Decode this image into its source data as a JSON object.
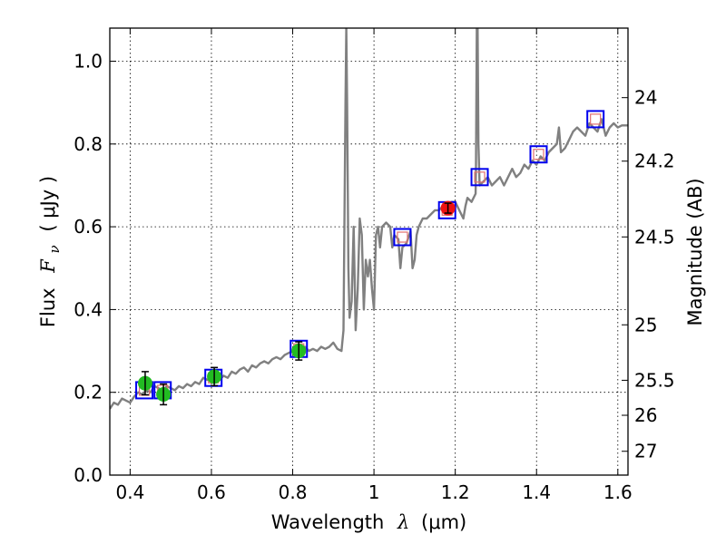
{
  "chart_data": {
    "type": "scatter",
    "xlabel_prefix": "Wavelength",
    "xlabel_symbol": "λ",
    "xlabel_unit": "(μm)",
    "ylabel_prefix": "Flux",
    "ylabel_symbol": "F",
    "ylabel_subscript": "ν",
    "ylabel_unit": "( μJy )",
    "y2label": "Magnitude (AB)",
    "xlim": [
      0.35,
      1.625
    ],
    "ylim": [
      0.0,
      1.08
    ],
    "grid": true,
    "x_ticks": [
      0.4,
      0.6,
      0.8,
      1.0,
      1.2,
      1.4,
      1.6
    ],
    "x_tick_labels": [
      "0.4",
      "0.6",
      "0.8",
      "1",
      "1.2",
      "1.4",
      "1.6"
    ],
    "y_ticks": [
      0.0,
      0.2,
      0.4,
      0.6,
      0.8,
      1.0
    ],
    "y_tick_labels": [
      "0.0",
      "0.2",
      "0.4",
      "0.6",
      "0.8",
      "1.0"
    ],
    "y2_ticks": [
      24,
      24.2,
      24.5,
      25,
      25.5,
      26,
      27
    ],
    "y2_tick_labels": [
      "24",
      "24.2",
      "24.5",
      "25",
      "25.5",
      "26",
      "27"
    ],
    "colors": {
      "spectrum": "#808080",
      "model_box": "#0000ee",
      "model_inner": "#e07070",
      "detection": "#22bb22",
      "detection_ir": "#ee1111",
      "errorbar": "#000000"
    },
    "series": [
      {
        "kind": "line",
        "points": [
          [
            0.35,
            0.16
          ],
          [
            0.36,
            0.175
          ],
          [
            0.37,
            0.17
          ],
          [
            0.38,
            0.185
          ],
          [
            0.39,
            0.18
          ],
          [
            0.4,
            0.175
          ],
          [
            0.41,
            0.19
          ],
          [
            0.42,
            0.2
          ],
          [
            0.43,
            0.195
          ],
          [
            0.44,
            0.205
          ],
          [
            0.45,
            0.2
          ],
          [
            0.46,
            0.215
          ],
          [
            0.47,
            0.21
          ],
          [
            0.48,
            0.2
          ],
          [
            0.49,
            0.215
          ],
          [
            0.5,
            0.21
          ],
          [
            0.51,
            0.205
          ],
          [
            0.52,
            0.215
          ],
          [
            0.53,
            0.21
          ],
          [
            0.54,
            0.22
          ],
          [
            0.55,
            0.215
          ],
          [
            0.56,
            0.225
          ],
          [
            0.57,
            0.22
          ],
          [
            0.58,
            0.235
          ],
          [
            0.59,
            0.23
          ],
          [
            0.6,
            0.24
          ],
          [
            0.61,
            0.235
          ],
          [
            0.62,
            0.23
          ],
          [
            0.63,
            0.24
          ],
          [
            0.64,
            0.235
          ],
          [
            0.65,
            0.25
          ],
          [
            0.66,
            0.245
          ],
          [
            0.67,
            0.255
          ],
          [
            0.68,
            0.26
          ],
          [
            0.69,
            0.25
          ],
          [
            0.7,
            0.265
          ],
          [
            0.71,
            0.26
          ],
          [
            0.72,
            0.27
          ],
          [
            0.73,
            0.275
          ],
          [
            0.74,
            0.27
          ],
          [
            0.75,
            0.28
          ],
          [
            0.76,
            0.285
          ],
          [
            0.77,
            0.28
          ],
          [
            0.78,
            0.29
          ],
          [
            0.79,
            0.295
          ],
          [
            0.8,
            0.3
          ],
          [
            0.81,
            0.305
          ],
          [
            0.82,
            0.3
          ],
          [
            0.83,
            0.31
          ],
          [
            0.84,
            0.3
          ],
          [
            0.85,
            0.305
          ],
          [
            0.86,
            0.3
          ],
          [
            0.87,
            0.31
          ],
          [
            0.88,
            0.305
          ],
          [
            0.89,
            0.31
          ],
          [
            0.9,
            0.32
          ],
          [
            0.91,
            0.305
          ],
          [
            0.92,
            0.3
          ],
          [
            0.925,
            0.35
          ],
          [
            0.93,
            0.9
          ],
          [
            0.932,
            1.08
          ],
          [
            0.934,
            0.9
          ],
          [
            0.937,
            0.5
          ],
          [
            0.94,
            0.38
          ],
          [
            0.945,
            0.42
          ],
          [
            0.95,
            0.6
          ],
          [
            0.955,
            0.35
          ],
          [
            0.96,
            0.45
          ],
          [
            0.965,
            0.62
          ],
          [
            0.97,
            0.58
          ],
          [
            0.975,
            0.4
          ],
          [
            0.98,
            0.52
          ],
          [
            0.985,
            0.48
          ],
          [
            0.99,
            0.52
          ],
          [
            0.995,
            0.45
          ],
          [
            1.0,
            0.4
          ],
          [
            1.005,
            0.58
          ],
          [
            1.01,
            0.6
          ],
          [
            1.015,
            0.55
          ],
          [
            1.02,
            0.6
          ],
          [
            1.03,
            0.61
          ],
          [
            1.04,
            0.6
          ],
          [
            1.045,
            0.55
          ],
          [
            1.05,
            0.58
          ],
          [
            1.06,
            0.57
          ],
          [
            1.065,
            0.5
          ],
          [
            1.07,
            0.55
          ],
          [
            1.08,
            0.56
          ],
          [
            1.09,
            0.59
          ],
          [
            1.095,
            0.5
          ],
          [
            1.1,
            0.52
          ],
          [
            1.105,
            0.58
          ],
          [
            1.11,
            0.6
          ],
          [
            1.12,
            0.62
          ],
          [
            1.13,
            0.62
          ],
          [
            1.14,
            0.63
          ],
          [
            1.15,
            0.64
          ],
          [
            1.16,
            0.64
          ],
          [
            1.17,
            0.65
          ],
          [
            1.18,
            0.65
          ],
          [
            1.19,
            0.66
          ],
          [
            1.2,
            0.66
          ],
          [
            1.21,
            0.64
          ],
          [
            1.22,
            0.62
          ],
          [
            1.225,
            0.65
          ],
          [
            1.23,
            0.67
          ],
          [
            1.24,
            0.66
          ],
          [
            1.25,
            0.68
          ],
          [
            1.251,
            0.75
          ],
          [
            1.253,
            1.08
          ],
          [
            1.255,
            1.08
          ],
          [
            1.257,
            0.8
          ],
          [
            1.26,
            0.7
          ],
          [
            1.27,
            0.71
          ],
          [
            1.28,
            0.72
          ],
          [
            1.29,
            0.7
          ],
          [
            1.3,
            0.71
          ],
          [
            1.31,
            0.72
          ],
          [
            1.32,
            0.7
          ],
          [
            1.33,
            0.72
          ],
          [
            1.34,
            0.74
          ],
          [
            1.35,
            0.72
          ],
          [
            1.36,
            0.73
          ],
          [
            1.37,
            0.75
          ],
          [
            1.38,
            0.74
          ],
          [
            1.39,
            0.76
          ],
          [
            1.4,
            0.75
          ],
          [
            1.41,
            0.77
          ],
          [
            1.42,
            0.76
          ],
          [
            1.43,
            0.78
          ],
          [
            1.44,
            0.79
          ],
          [
            1.45,
            0.8
          ],
          [
            1.455,
            0.84
          ],
          [
            1.46,
            0.78
          ],
          [
            1.47,
            0.79
          ],
          [
            1.48,
            0.81
          ],
          [
            1.49,
            0.83
          ],
          [
            1.5,
            0.84
          ],
          [
            1.51,
            0.83
          ],
          [
            1.52,
            0.82
          ],
          [
            1.53,
            0.85
          ],
          [
            1.54,
            0.84
          ],
          [
            1.55,
            0.83
          ],
          [
            1.56,
            0.86
          ],
          [
            1.57,
            0.82
          ],
          [
            1.58,
            0.84
          ],
          [
            1.59,
            0.85
          ],
          [
            1.6,
            0.84
          ],
          [
            1.61,
            0.845
          ],
          [
            1.625,
            0.845
          ]
        ]
      },
      {
        "kind": "model",
        "points": [
          [
            0.435,
            0.205
          ],
          [
            0.48,
            0.205
          ],
          [
            0.605,
            0.235
          ],
          [
            0.815,
            0.305
          ],
          [
            1.07,
            0.575
          ],
          [
            1.18,
            0.64
          ],
          [
            1.26,
            0.72
          ],
          [
            1.405,
            0.775
          ],
          [
            1.545,
            0.86
          ]
        ]
      },
      {
        "kind": "detection",
        "points": [
          [
            0.437,
            0.222,
            0.028
          ],
          [
            0.482,
            0.195,
            0.025
          ],
          [
            0.607,
            0.238,
            0.022
          ],
          [
            0.815,
            0.3,
            0.022
          ]
        ]
      },
      {
        "kind": "detection_ir",
        "points": [
          [
            1.182,
            0.645,
            0.012
          ]
        ]
      }
    ]
  }
}
